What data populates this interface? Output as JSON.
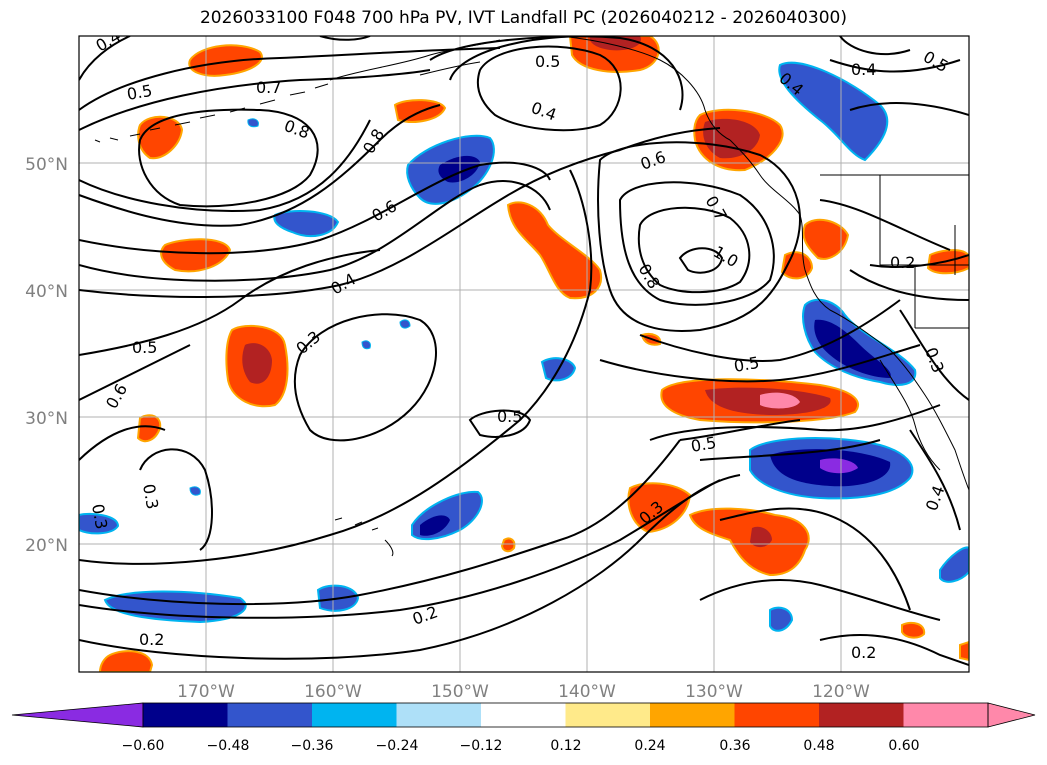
{
  "title": "2026033100 F048 700 hPa PV, IVT Landfall PC (2026040212 - 2026040300)",
  "lat_labels": [
    "50°N",
    "40°N",
    "30°N",
    "20°N"
  ],
  "lon_labels": [
    "170°W",
    "160°W",
    "150°W",
    "140°W",
    "130°W",
    "120°W"
  ],
  "colorbar": {
    "ticks": [
      "−0.60",
      "−0.48",
      "−0.36",
      "−0.24",
      "−0.12",
      "0.12",
      "0.24",
      "0.36",
      "0.48",
      "0.60"
    ],
    "colors": [
      "#8a2be2",
      "#00008b",
      "#3355cc",
      "#00b4f0",
      "#aee0f8",
      "#ffffff",
      "#ffea8a",
      "#ffa500",
      "#ff4500",
      "#b22222",
      "#ff88aa",
      "#ff88aa"
    ]
  },
  "contour_labels": [
    {
      "text": "0.4",
      "rotate": -30
    },
    {
      "text": "0.5",
      "rotate": -10
    },
    {
      "text": "0.7",
      "rotate": 0
    },
    {
      "text": "0.8",
      "rotate": 20
    },
    {
      "text": "0.8",
      "rotate": -60
    },
    {
      "text": "0.5",
      "rotate": 0
    },
    {
      "text": "0.4",
      "rotate": 20
    },
    {
      "text": "0.6",
      "rotate": -30
    },
    {
      "text": "0.4",
      "rotate": -30
    },
    {
      "text": "0.3",
      "rotate": -40
    },
    {
      "text": "0.5",
      "rotate": 0
    },
    {
      "text": "0.6",
      "rotate": -60
    },
    {
      "text": "0.5",
      "rotate": 0
    },
    {
      "text": "0.6",
      "rotate": -20
    },
    {
      "text": "0.7",
      "rotate": 60
    },
    {
      "text": "0.8",
      "rotate": 60
    },
    {
      "text": "1.0",
      "rotate": 30
    },
    {
      "text": "0.5",
      "rotate": -10
    },
    {
      "text": "0.5",
      "rotate": -10
    },
    {
      "text": "0.3",
      "rotate": -40
    },
    {
      "text": "0.3",
      "rotate": 80
    },
    {
      "text": "0.3",
      "rotate": 80
    },
    {
      "text": "0.2",
      "rotate": -20
    },
    {
      "text": "0.2",
      "rotate": 0
    },
    {
      "text": "0.2",
      "rotate": 0
    },
    {
      "text": "0.2",
      "rotate": 0
    },
    {
      "text": "0.4",
      "rotate": 0
    },
    {
      "text": "0.5",
      "rotate": 30
    },
    {
      "text": "0.3",
      "rotate": 70
    },
    {
      "text": "0.4",
      "rotate": -70
    },
    {
      "text": "0.4",
      "rotate": 40
    }
  ]
}
